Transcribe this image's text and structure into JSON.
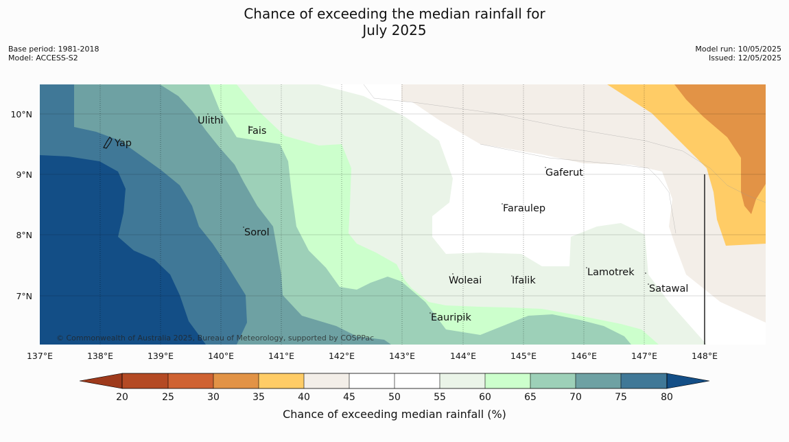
{
  "title": {
    "line1": "Chance of exceeding the median rainfall for",
    "line2": "July 2025"
  },
  "meta": {
    "base_period": "Base period: 1981-2018",
    "model": "Model: ACCESS-S2",
    "model_run": "Model run: 10/05/2025",
    "issued": "Issued: 12/05/2025"
  },
  "map": {
    "longitude_ticks": [
      "137°E",
      "138°E",
      "139°E",
      "140°E",
      "141°E",
      "142°E",
      "143°E",
      "144°E",
      "145°E",
      "146°E",
      "147°E",
      "148°E"
    ],
    "latitude_ticks": [
      "10°N",
      "9°N",
      "8°N",
      "7°N"
    ],
    "places": [
      {
        "name": "Yap"
      },
      {
        "name": "Ulithi"
      },
      {
        "name": "Fais"
      },
      {
        "name": "Sorol"
      },
      {
        "name": "Gaferut"
      },
      {
        "name": "Faraulep"
      },
      {
        "name": "Woleai"
      },
      {
        "name": "Ifalik"
      },
      {
        "name": "Lamotrek"
      },
      {
        "name": "Satawal"
      },
      {
        "name": "Eauripik"
      }
    ],
    "copyright": "© Commonwealth of Australia 2025, Bureau of Meteorology, supported by COSPPac"
  },
  "colorbar": {
    "title": "Chance of exceeding median rainfall (%)",
    "ticks": [
      "20",
      "25",
      "30",
      "35",
      "40",
      "45",
      "50",
      "55",
      "60",
      "65",
      "70",
      "75",
      "80"
    ],
    "colors": {
      "lt20": "#9e3a1c",
      "20_25": "#b44a24",
      "25_30": "#cf6232",
      "30_35": "#e29346",
      "35_40": "#ffcc66",
      "40_45": "#f3eee8",
      "45_50": "#ffffff",
      "50_55": "#ffffff",
      "55_60": "#eaf4e8",
      "60_65": "#ccffcc",
      "65_70": "#9dd0b8",
      "70_75": "#6ea1a3",
      "75_80": "#407897",
      "gt80": "#134e86"
    }
  }
}
